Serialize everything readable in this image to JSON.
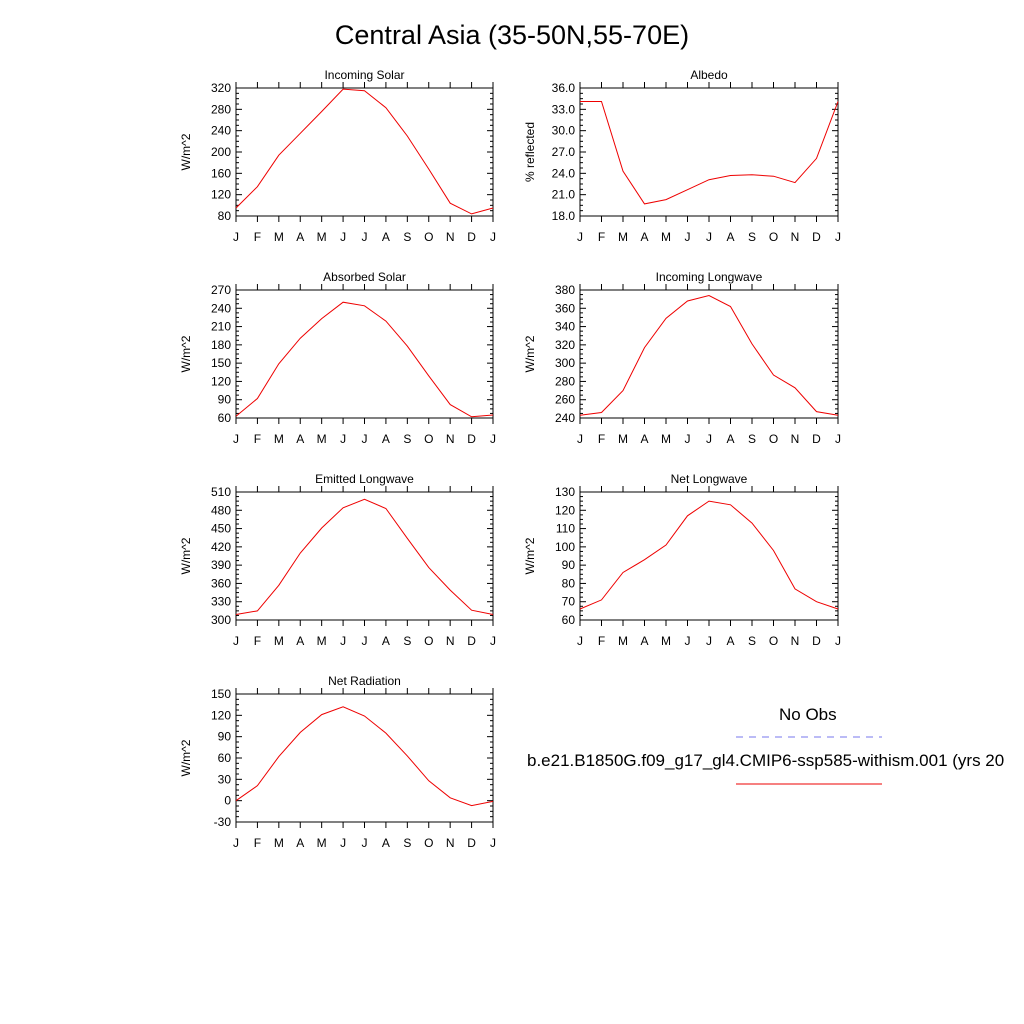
{
  "title": "Central Asia (35-50N,55-70E)",
  "months": [
    "J",
    "F",
    "M",
    "A",
    "M",
    "J",
    "J",
    "A",
    "S",
    "O",
    "N",
    "D",
    "J"
  ],
  "legend": {
    "obs_label": "No Obs",
    "model_label": "b.e21.B1850G.f09_g17_gl4.CMIP6-ssp585-withism.001 (yrs 20",
    "obs_color": "#7777ee",
    "model_color": "#ee0000"
  },
  "chart_data": [
    {
      "type": "line",
      "title": "Incoming Solar",
      "ylabel": "W/m^2",
      "ylim": [
        80,
        320
      ],
      "yticks": [
        80,
        120,
        160,
        200,
        240,
        280,
        320
      ],
      "tick_labels": [
        "80",
        "120",
        "160",
        "200",
        "240",
        "280",
        "320"
      ],
      "series": [
        {
          "values": [
            95,
            135,
            194,
            235,
            276,
            318,
            315,
            283,
            230,
            168,
            104,
            84,
            95
          ]
        }
      ]
    },
    {
      "type": "line",
      "title": "Albedo",
      "ylabel": "% reflected",
      "ylim": [
        18,
        36
      ],
      "yticks": [
        18,
        21,
        24,
        27,
        30,
        33,
        36
      ],
      "tick_labels": [
        "18.0",
        "21.0",
        "24.0",
        "27.0",
        "30.0",
        "33.0",
        "36.0"
      ],
      "series": [
        {
          "values": [
            34.1,
            34.1,
            24.3,
            19.7,
            20.3,
            21.7,
            23.1,
            23.7,
            23.8,
            23.6,
            22.7,
            26.1,
            34.1
          ]
        }
      ]
    },
    {
      "type": "line",
      "title": "Absorbed Solar",
      "ylabel": "W/m^2",
      "ylim": [
        60,
        270
      ],
      "yticks": [
        60,
        90,
        120,
        150,
        180,
        210,
        240,
        270
      ],
      "tick_labels": [
        "60",
        "90",
        "120",
        "150",
        "180",
        "210",
        "240",
        "270"
      ],
      "series": [
        {
          "values": [
            63,
            92,
            149,
            191,
            223,
            250,
            244,
            219,
            178,
            129,
            82,
            62,
            65
          ]
        }
      ]
    },
    {
      "type": "line",
      "title": "Incoming Longwave",
      "ylabel": "W/m^2",
      "ylim": [
        240,
        380
      ],
      "yticks": [
        240,
        260,
        280,
        300,
        320,
        340,
        360,
        380
      ],
      "tick_labels": [
        "240",
        "260",
        "280",
        "300",
        "320",
        "340",
        "360",
        "380"
      ],
      "series": [
        {
          "values": [
            243,
            246,
            270,
            317,
            349,
            368,
            374,
            362,
            321,
            287,
            273,
            247,
            243
          ]
        }
      ]
    },
    {
      "type": "line",
      "title": "Emitted Longwave",
      "ylabel": "W/m^2",
      "ylim": [
        300,
        510
      ],
      "yticks": [
        300,
        330,
        360,
        390,
        420,
        450,
        480,
        510
      ],
      "tick_labels": [
        "300",
        "330",
        "360",
        "390",
        "420",
        "450",
        "480",
        "510"
      ],
      "series": [
        {
          "values": [
            309,
            315,
            357,
            410,
            451,
            484,
            498,
            483,
            434,
            386,
            349,
            316,
            309
          ]
        }
      ]
    },
    {
      "type": "line",
      "title": "Net Longwave",
      "ylabel": "W/m^2",
      "ylim": [
        60,
        130
      ],
      "yticks": [
        60,
        70,
        80,
        90,
        100,
        110,
        120,
        130
      ],
      "tick_labels": [
        "60",
        "70",
        "80",
        "90",
        "100",
        "110",
        "120",
        "130"
      ],
      "series": [
        {
          "values": [
            66,
            71,
            86,
            93,
            101,
            117,
            125,
            123,
            113,
            98,
            77,
            70,
            66
          ]
        }
      ]
    },
    {
      "type": "line",
      "title": "Net Radiation",
      "ylabel": "W/m^2",
      "ylim": [
        -30,
        150
      ],
      "yticks": [
        -30,
        0,
        30,
        60,
        90,
        120,
        150
      ],
      "tick_labels": [
        "-30",
        "0",
        "30",
        "60",
        "90",
        "120",
        "150"
      ],
      "series": [
        {
          "values": [
            0,
            21,
            62,
            96,
            121,
            132,
            119,
            95,
            63,
            28,
            4,
            -7,
            -1
          ]
        }
      ]
    }
  ]
}
